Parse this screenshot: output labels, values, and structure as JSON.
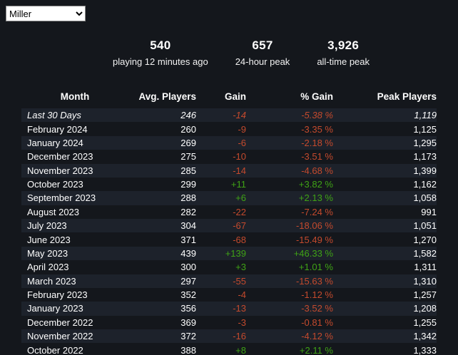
{
  "app": {
    "game_selector": {
      "selected": "Miller",
      "options": [
        "Miller"
      ]
    }
  },
  "stats": [
    {
      "value": "540",
      "label": "playing 12 minutes ago"
    },
    {
      "value": "657",
      "label": "24-hour peak"
    },
    {
      "value": "3,926",
      "label": "all-time peak"
    }
  ],
  "table": {
    "headers": [
      "Month",
      "Avg. Players",
      "Gain",
      "% Gain",
      "Peak Players"
    ],
    "rows": [
      {
        "month": "Last 30 Days",
        "avg": "246",
        "gain": "-14",
        "pct": "-5.38 %",
        "peak": "1,119",
        "italic": true
      },
      {
        "month": "February 2024",
        "avg": "260",
        "gain": "-9",
        "pct": "-3.35 %",
        "peak": "1,125",
        "italic": false
      },
      {
        "month": "January 2024",
        "avg": "269",
        "gain": "-6",
        "pct": "-2.18 %",
        "peak": "1,295",
        "italic": false
      },
      {
        "month": "December 2023",
        "avg": "275",
        "gain": "-10",
        "pct": "-3.51 %",
        "peak": "1,173",
        "italic": false
      },
      {
        "month": "November 2023",
        "avg": "285",
        "gain": "-14",
        "pct": "-4.68 %",
        "peak": "1,399",
        "italic": false
      },
      {
        "month": "October 2023",
        "avg": "299",
        "gain": "+11",
        "pct": "+3.82 %",
        "peak": "1,162",
        "italic": false
      },
      {
        "month": "September 2023",
        "avg": "288",
        "gain": "+6",
        "pct": "+2.13 %",
        "peak": "1,058",
        "italic": false
      },
      {
        "month": "August 2023",
        "avg": "282",
        "gain": "-22",
        "pct": "-7.24 %",
        "peak": "991",
        "italic": false
      },
      {
        "month": "July 2023",
        "avg": "304",
        "gain": "-67",
        "pct": "-18.06 %",
        "peak": "1,051",
        "italic": false
      },
      {
        "month": "June 2023",
        "avg": "371",
        "gain": "-68",
        "pct": "-15.49 %",
        "peak": "1,270",
        "italic": false
      },
      {
        "month": "May 2023",
        "avg": "439",
        "gain": "+139",
        "pct": "+46.33 %",
        "peak": "1,582",
        "italic": false
      },
      {
        "month": "April 2023",
        "avg": "300",
        "gain": "+3",
        "pct": "+1.01 %",
        "peak": "1,311",
        "italic": false
      },
      {
        "month": "March 2023",
        "avg": "297",
        "gain": "-55",
        "pct": "-15.63 %",
        "peak": "1,310",
        "italic": false
      },
      {
        "month": "February 2023",
        "avg": "352",
        "gain": "-4",
        "pct": "-1.12 %",
        "peak": "1,257",
        "italic": false
      },
      {
        "month": "January 2023",
        "avg": "356",
        "gain": "-13",
        "pct": "-3.52 %",
        "peak": "1,208",
        "italic": false
      },
      {
        "month": "December 2022",
        "avg": "369",
        "gain": "-3",
        "pct": "-0.81 %",
        "peak": "1,255",
        "italic": false
      },
      {
        "month": "November 2022",
        "avg": "372",
        "gain": "-16",
        "pct": "-4.12 %",
        "peak": "1,342",
        "italic": false
      },
      {
        "month": "October 2022",
        "avg": "388",
        "gain": "+8",
        "pct": "+2.11 %",
        "peak": "1,333",
        "italic": false
      }
    ]
  },
  "colors": {
    "positive": "#3fa315",
    "negative": "#c44a2d"
  }
}
